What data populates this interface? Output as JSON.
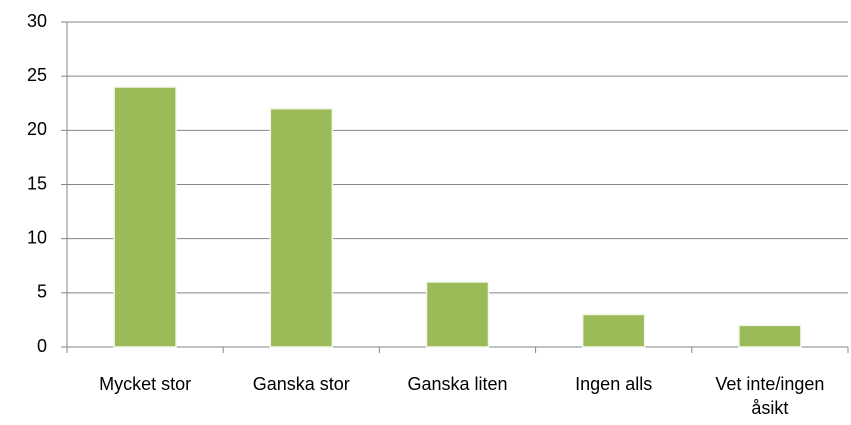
{
  "chart_data": {
    "type": "bar",
    "categories": [
      "Mycket stor",
      "Ganska stor",
      "Ganska liten",
      "Ingen alls",
      "Vet inte/ingen åsikt"
    ],
    "values": [
      24,
      22,
      6,
      3,
      2
    ],
    "color": "#9bbb59",
    "ylim": [
      0,
      30
    ],
    "yticks": [
      0,
      5,
      10,
      15,
      20,
      25,
      30
    ],
    "grid": true
  }
}
